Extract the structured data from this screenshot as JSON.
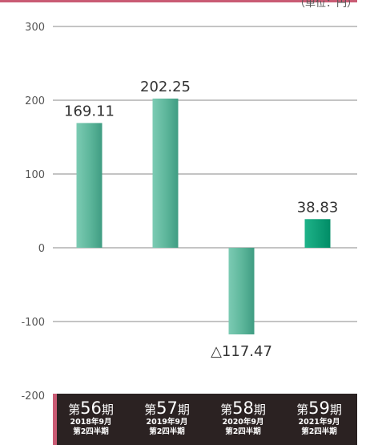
{
  "unit_text": "（単位：円）",
  "chart_data": {
    "type": "bar",
    "categories": [
      "第56期 2018年9月 第2四半期",
      "第57期 2019年9月 第2四半期",
      "第58期 2020年9月 第2四半期",
      "第59期 2021年9月 第2四半期"
    ],
    "values": [
      169.11,
      202.25,
      -117.47,
      38.83
    ],
    "data_labels": [
      "169.11",
      "202.25",
      "△117.47",
      "38.83"
    ],
    "yticks": [
      300,
      200,
      100,
      0,
      -100,
      -200
    ],
    "ylim": [
      -200,
      300
    ],
    "grid": true,
    "colors": {
      "bar": "#5cb59a",
      "bar_highlight": "#009a72",
      "grid": "#888888",
      "band": "#2b2222",
      "accent": "#c95b74"
    }
  },
  "periods": [
    {
      "prefix": "第",
      "num": "56",
      "suffix": "期",
      "date": "2018年9月",
      "quarter": "第2四半期"
    },
    {
      "prefix": "第",
      "num": "57",
      "suffix": "期",
      "date": "2019年9月",
      "quarter": "第2四半期"
    },
    {
      "prefix": "第",
      "num": "58",
      "suffix": "期",
      "date": "2020年9月",
      "quarter": "第2四半期"
    },
    {
      "prefix": "第",
      "num": "59",
      "suffix": "期",
      "date": "2021年9月",
      "quarter": "第2四半期"
    }
  ]
}
